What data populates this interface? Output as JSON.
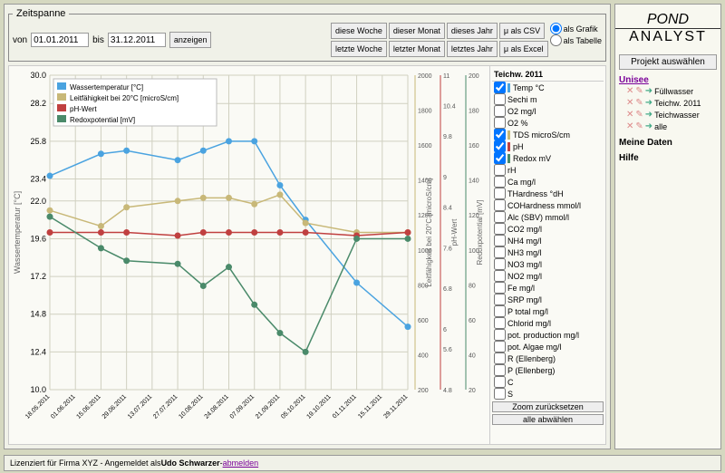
{
  "timespan": {
    "legend": "Zeitspanne",
    "von_label": "von",
    "von_value": "01.01.2011",
    "bis_label": "bis",
    "bis_value": "31.12.2011",
    "anzeigen": "anzeigen",
    "buttons": {
      "diese_woche": "diese Woche",
      "dieser_monat": "dieser Monat",
      "dieses_jahr": "dieses Jahr",
      "letzte_woche": "letzte Woche",
      "letzter_monat": "letzter Monat",
      "letztes_jahr": "letztes Jahr",
      "als_csv": "μ als CSV",
      "als_excel": "μ als Excel"
    },
    "radio": {
      "grafik": "als Grafik",
      "tabelle": "als Tabelle"
    }
  },
  "chart": {
    "legend": {
      "temp": "Wassertemperatur [°C]",
      "leit": "Leitfähigkeit bei 20°C [microS/cm]",
      "ph": "pH-Wert",
      "redox": "Redoxpotential [mV]"
    },
    "axis_labels": {
      "temp": "Wassertemperatur [°C]",
      "leit": "Leitfähigkeit bei 20°C [microS/cm]",
      "ph": "pH-Wert",
      "redox": "Redoxpotential [mV]"
    },
    "colors": {
      "temp": "#4aa3e0",
      "leit": "#c8b878",
      "ph": "#c04040",
      "redox": "#4a8a6a",
      "grid": "#d0d0c0",
      "bg": "#fafaf5"
    },
    "y_temp": {
      "min": 10.0,
      "max": 30.0,
      "ticks": [
        10.0,
        12.4,
        14.8,
        17.2,
        19.6,
        22.0,
        23.4,
        25.8,
        28.2,
        30.0
      ]
    },
    "y_leit": {
      "min": 200,
      "max": 2000,
      "ticks": [
        200,
        400,
        600,
        800,
        1000,
        1200,
        1400,
        1600,
        1800,
        2000
      ]
    },
    "y_ph": {
      "min": 4.8,
      "max": 11.0,
      "ticks": [
        4.8,
        5.6,
        6.0,
        6.8,
        7.6,
        8.4,
        9.0,
        9.8,
        10.4,
        11.0
      ]
    },
    "y_redox": {
      "min": 20,
      "max": 200,
      "ticks": [
        20,
        40,
        60,
        80,
        100,
        120,
        140,
        160,
        180,
        200
      ]
    },
    "x_labels": [
      "18.05.2011",
      "01.06.2011",
      "15.06.2011",
      "29.06.2011",
      "13.07.2011",
      "27.07.2011",
      "10.08.2011",
      "24.08.2011",
      "07.09.2011",
      "21.09.2011",
      "05.10.2011",
      "19.10.2011",
      "01.11.2011",
      "15.11.2011",
      "29.11.2011"
    ],
    "series": {
      "temp": [
        23.6,
        null,
        25.0,
        25.2,
        null,
        24.6,
        25.2,
        25.8,
        25.8,
        23.0,
        20.8,
        null,
        16.8,
        null,
        14.0
      ],
      "leit": [
        21.4,
        null,
        20.4,
        21.6,
        null,
        22.0,
        22.2,
        22.2,
        21.8,
        22.4,
        20.6,
        null,
        20.0,
        null,
        20.0
      ],
      "ph": [
        20.0,
        null,
        20.0,
        20.0,
        null,
        19.8,
        20.0,
        20.0,
        20.0,
        20.0,
        20.0,
        null,
        19.8,
        null,
        20.0
      ],
      "redox": [
        21.0,
        null,
        19.0,
        18.2,
        null,
        18.0,
        16.6,
        17.8,
        15.4,
        13.6,
        12.4,
        null,
        19.6,
        null,
        19.6
      ]
    }
  },
  "params": {
    "header": "Teichw. 2011",
    "items": [
      {
        "label": "Temp °C",
        "checked": true,
        "color": "#4aa3e0"
      },
      {
        "label": "Sechi m",
        "checked": false
      },
      {
        "label": "O2 mg/l",
        "checked": false
      },
      {
        "label": "O2 %",
        "checked": false
      },
      {
        "label": "TDS microS/cm",
        "checked": true,
        "color": "#c8b878"
      },
      {
        "label": "pH",
        "checked": true,
        "color": "#c04040"
      },
      {
        "label": "Redox mV",
        "checked": true,
        "color": "#4a8a6a"
      },
      {
        "label": "rH",
        "checked": false
      },
      {
        "label": "Ca mg/l",
        "checked": false
      },
      {
        "label": "THardness °dH",
        "checked": false
      },
      {
        "label": "COHardness mmol/l",
        "checked": false
      },
      {
        "label": "Alc (SBV) mmol/l",
        "checked": false
      },
      {
        "label": "CO2 mg/l",
        "checked": false
      },
      {
        "label": "NH4 mg/l",
        "checked": false
      },
      {
        "label": "NH3 mg/l",
        "checked": false
      },
      {
        "label": "NO3 mg/l",
        "checked": false
      },
      {
        "label": "NO2 mg/l",
        "checked": false
      },
      {
        "label": "Fe mg/l",
        "checked": false
      },
      {
        "label": "SRP mg/l",
        "checked": false
      },
      {
        "label": "P total mg/l",
        "checked": false
      },
      {
        "label": "Chlorid mg/l",
        "checked": false
      },
      {
        "label": "pot. production mg/l",
        "checked": false
      },
      {
        "label": "pot. Algae mg/l",
        "checked": false
      },
      {
        "label": "R (Ellenberg)",
        "checked": false
      },
      {
        "label": "P (Ellenberg)",
        "checked": false
      },
      {
        "label": "C",
        "checked": false
      },
      {
        "label": "S",
        "checked": false
      }
    ],
    "zoom_reset": "Zoom zurücksetzen",
    "alle_abw": "alle abwählen"
  },
  "brand": {
    "top": "POND",
    "bottom": "ANALYST"
  },
  "side": {
    "projekt": "Projekt auswählen",
    "project_link": "Unisee",
    "projects": [
      {
        "name": "Füllwasser"
      },
      {
        "name": "Teichw. 2011"
      },
      {
        "name": "Teichwasser"
      },
      {
        "name": "alle"
      }
    ],
    "meine": "Meine Daten",
    "hilfe": "Hilfe"
  },
  "footer": {
    "text": "Lizenziert für Firma XYZ - Angemeldet als ",
    "user": "Udo Schwarzer",
    "sep": " - ",
    "logout": "abmelden"
  }
}
